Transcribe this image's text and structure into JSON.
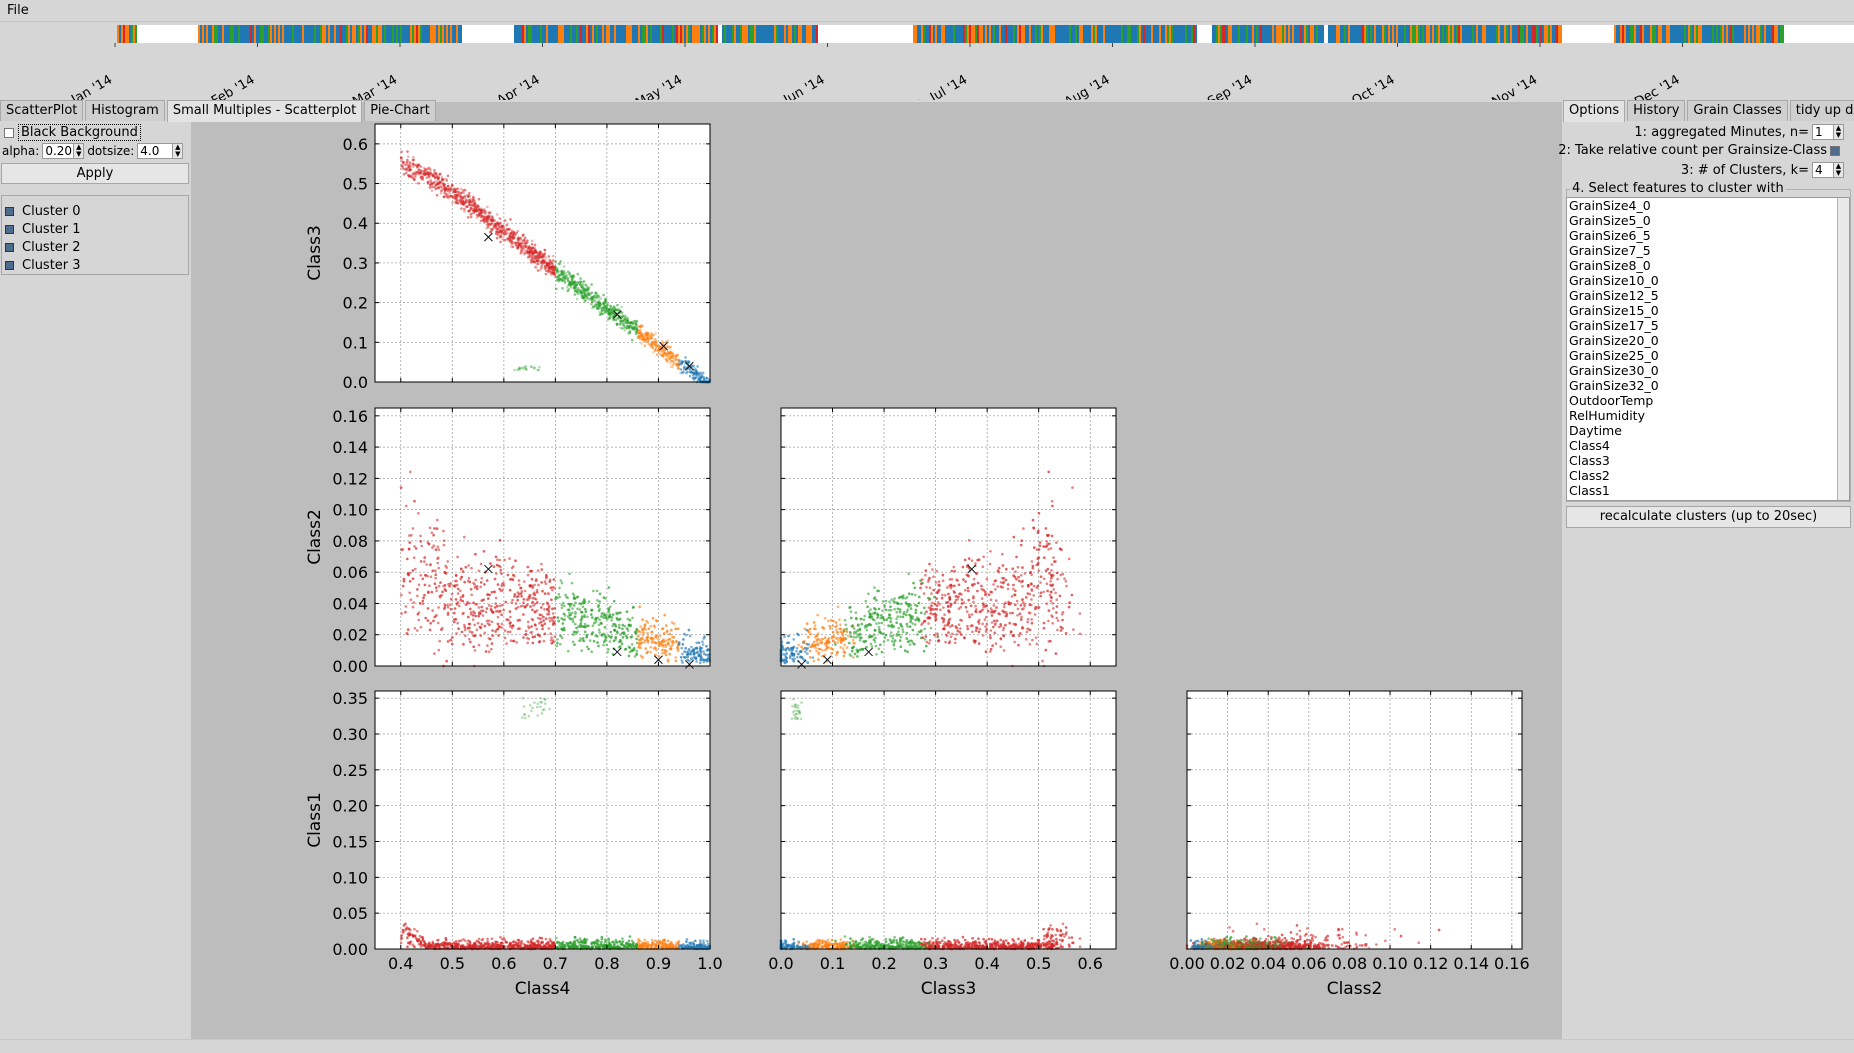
{
  "menu": {
    "file": "File"
  },
  "timeline": {
    "months": [
      "1. Jan '14",
      "1. Feb '14",
      "1. Mar '14",
      "1. Apr '14",
      "1. May '14",
      "1. Jun '14",
      "1. Jul '14",
      "1. Aug '14",
      "1. Sep '14",
      "1. Oct '14",
      "1. Nov '14",
      "1. Dec '14"
    ],
    "cluster_colors": [
      "#1f77b4",
      "#ff7f0e",
      "#2ca02c",
      "#d62728"
    ]
  },
  "left_tabs": [
    "ScatterPlot",
    "Histogram",
    "Small Multiples - Scatterplot",
    "Pie-Chart"
  ],
  "left_active_tab": 2,
  "left_panel": {
    "black_background_label": "Black Background",
    "black_background_checked": false,
    "alpha_label": "alpha:",
    "alpha_value": "0.20",
    "dotsize_label": "dotsize:",
    "dotsize_value": "4.0",
    "apply_label": "Apply",
    "clusters": [
      "Cluster 0",
      "Cluster 1",
      "Cluster 2",
      "Cluster 3"
    ]
  },
  "right_tabs": [
    "Options",
    "History",
    "Grain Classes",
    "tidy up data"
  ],
  "right_active_tab": 0,
  "right_panel": {
    "aggregate_label": "1: aggregated Minutes, n=",
    "aggregate_value": "1",
    "relative_label": "2: Take relative count per Grainsize-Class",
    "relative_checked": true,
    "clusters_label": "3: # of Clusters, k=",
    "clusters_value": "4",
    "features_title": "4. Select features to cluster with",
    "features": [
      "GrainSize4_0",
      "GrainSize5_0",
      "GrainSize6_5",
      "GrainSize7_5",
      "GrainSize8_0",
      "GrainSize10_0",
      "GrainSize12_5",
      "GrainSize15_0",
      "GrainSize17_5",
      "GrainSize20_0",
      "GrainSize25_0",
      "GrainSize30_0",
      "GrainSize32_0",
      "OutdoorTemp",
      "RelHumidity",
      "Daytime",
      "Class4",
      "Class3",
      "Class2",
      "Class1"
    ],
    "recalc_label": "recalculate clusters (up to 20sec)"
  },
  "chart_data": [
    {
      "type": "scatter",
      "row": 0,
      "col": 0,
      "xlabel": "",
      "ylabel": "Class3",
      "xlim": [
        0.35,
        1.0
      ],
      "ylim": [
        0.0,
        0.65
      ],
      "xticks": [
        "0.4",
        "0.5",
        "0.6",
        "0.7",
        "0.8",
        "0.9",
        "1.0"
      ],
      "show_xtick_labels": false,
      "yticks": [
        "0.0",
        "0.1",
        "0.2",
        "0.3",
        "0.4",
        "0.5",
        "0.6"
      ],
      "centroids": [
        {
          "x": 0.57,
          "y": 0.365
        },
        {
          "x": 0.82,
          "y": 0.17
        },
        {
          "x": 0.91,
          "y": 0.09
        },
        {
          "x": 0.96,
          "y": 0.04
        }
      ]
    },
    {
      "type": "scatter",
      "row": 1,
      "col": 0,
      "xlabel": "",
      "ylabel": "Class2",
      "xlim": [
        0.35,
        1.0
      ],
      "ylim": [
        0.0,
        0.165
      ],
      "xticks": [
        "0.4",
        "0.5",
        "0.6",
        "0.7",
        "0.8",
        "0.9",
        "1.0"
      ],
      "show_xtick_labels": false,
      "yticks": [
        "0.00",
        "0.02",
        "0.04",
        "0.06",
        "0.08",
        "0.10",
        "0.12",
        "0.14",
        "0.16"
      ],
      "centroids": [
        {
          "x": 0.57,
          "y": 0.062
        },
        {
          "x": 0.82,
          "y": 0.009
        },
        {
          "x": 0.9,
          "y": 0.004
        },
        {
          "x": 0.96,
          "y": 0.001
        }
      ]
    },
    {
      "type": "scatter",
      "row": 1,
      "col": 1,
      "xlabel": "",
      "ylabel": "",
      "xlim": [
        0.0,
        0.65
      ],
      "ylim": [
        0.0,
        0.165
      ],
      "xticks": [
        "0.0",
        "0.1",
        "0.2",
        "0.3",
        "0.4",
        "0.5",
        "0.6"
      ],
      "show_xtick_labels": false,
      "yticks": [
        "0.00",
        "0.02",
        "0.04",
        "0.06",
        "0.08",
        "0.10",
        "0.12",
        "0.14",
        "0.16"
      ],
      "show_ytick_labels": false,
      "centroids": [
        {
          "x": 0.37,
          "y": 0.062
        },
        {
          "x": 0.17,
          "y": 0.009
        },
        {
          "x": 0.09,
          "y": 0.004
        },
        {
          "x": 0.04,
          "y": 0.001
        }
      ]
    },
    {
      "type": "scatter",
      "row": 2,
      "col": 0,
      "xlabel": "Class4",
      "ylabel": "Class1",
      "xlim": [
        0.35,
        1.0
      ],
      "ylim": [
        0.0,
        0.36
      ],
      "xticks": [
        "0.4",
        "0.5",
        "0.6",
        "0.7",
        "0.8",
        "0.9",
        "1.0"
      ],
      "yticks": [
        "0.00",
        "0.05",
        "0.10",
        "0.15",
        "0.20",
        "0.25",
        "0.30",
        "0.35"
      ],
      "centroids": []
    },
    {
      "type": "scatter",
      "row": 2,
      "col": 1,
      "xlabel": "Class3",
      "ylabel": "",
      "xlim": [
        0.0,
        0.65
      ],
      "ylim": [
        0.0,
        0.36
      ],
      "xticks": [
        "0.0",
        "0.1",
        "0.2",
        "0.3",
        "0.4",
        "0.5",
        "0.6"
      ],
      "yticks": [
        "0.00",
        "0.05",
        "0.10",
        "0.15",
        "0.20",
        "0.25",
        "0.30",
        "0.35"
      ],
      "show_ytick_labels": false,
      "centroids": []
    },
    {
      "type": "scatter",
      "row": 2,
      "col": 2,
      "xlabel": "Class2",
      "ylabel": "",
      "xlim": [
        0.0,
        0.165
      ],
      "ylim": [
        0.0,
        0.36
      ],
      "xticks": [
        "0.00",
        "0.02",
        "0.04",
        "0.06",
        "0.08",
        "0.10",
        "0.12",
        "0.14",
        "0.16"
      ],
      "yticks": [
        "0.00",
        "0.05",
        "0.10",
        "0.15",
        "0.20",
        "0.25",
        "0.30",
        "0.35"
      ],
      "show_ytick_labels": false,
      "centroids": []
    }
  ]
}
